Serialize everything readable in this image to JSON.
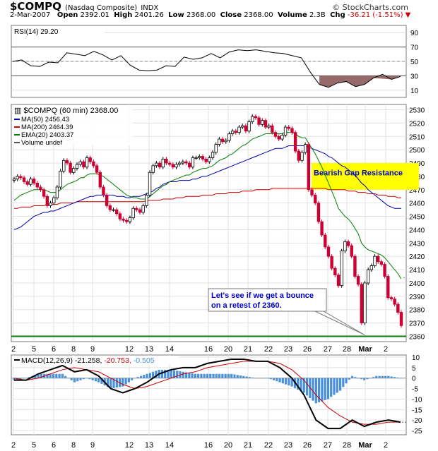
{
  "header": {
    "symbol": "$COMPQ",
    "name": "(Nasdaq Composite)",
    "exchange": "INDX",
    "date": "2-Mar-2007",
    "open_label": "Open",
    "open": "2392.01",
    "high_label": "High",
    "high": "2401.26",
    "low_label": "Low",
    "low": "2368.00",
    "close_label": "Close",
    "close": "2368.00",
    "volume_label": "Volume",
    "volume": "2.3B",
    "chg_label": "Chg",
    "chg": "-36.21 (-1.51%)",
    "watermark": "© StockCharts.com"
  },
  "colors": {
    "up": "#000000",
    "down": "#cc0033",
    "ma50": "#0000aa",
    "ma200": "#cc0000",
    "ema20": "#008000",
    "support": "#008000",
    "resistance_box": "#ffff00",
    "histogram": "#4a90d9"
  },
  "chart_data": [
    {
      "type": "line",
      "panel": "rsi",
      "label": "RSI(14) 29.20",
      "ylim": [
        0,
        100
      ],
      "ticks": [
        "90",
        "70",
        "50",
        "30",
        "10"
      ],
      "levels": [
        70,
        50,
        30
      ],
      "x": [
        0,
        3,
        6,
        9,
        12,
        15,
        18,
        21,
        24,
        27,
        30,
        33,
        36,
        39,
        42,
        45,
        48,
        51,
        54,
        57,
        60,
        63,
        66,
        69,
        72,
        75,
        78,
        81,
        84,
        87,
        90,
        93,
        96,
        99,
        102,
        105,
        108,
        111,
        114,
        117,
        120,
        123,
        126,
        129
      ],
      "values": [
        50,
        52,
        44,
        43,
        49,
        48,
        62,
        60,
        58,
        64,
        59,
        52,
        58,
        45,
        38,
        37,
        38,
        44,
        43,
        56,
        53,
        55,
        61,
        55,
        63,
        66,
        65,
        66,
        64,
        62,
        61,
        58,
        55,
        35,
        18,
        14,
        20,
        22,
        15,
        18,
        27,
        32,
        25,
        29
      ]
    },
    {
      "type": "candlestick",
      "panel": "price",
      "label": "$COMPQ (60 min) 2368.00",
      "ylim": [
        2356,
        2534
      ],
      "ticks": [
        "2530",
        "2520",
        "2510",
        "2500",
        "2490",
        "2480",
        "2470",
        "2460",
        "2450",
        "2440",
        "2430",
        "2420",
        "2410",
        "2400",
        "2390",
        "2380",
        "2370",
        "2360"
      ],
      "x_ticks": [
        "2",
        "5",
        "6",
        "8",
        "9",
        "12",
        "13",
        "14",
        "16",
        "20",
        "21",
        "22",
        "23",
        "26",
        "27",
        "28",
        "Mar",
        "2"
      ],
      "legend": [
        {
          "name": "MA(50) 2456.43",
          "color_key": "ma50"
        },
        {
          "name": "MA(200) 2464.39",
          "color_key": "ma200"
        },
        {
          "name": "EMA(20) 2403.37",
          "color_key": "ema20"
        },
        {
          "name": "Volume undef",
          "color_key": "up"
        }
      ],
      "close": [
        2478,
        2480,
        2479,
        2476,
        2474,
        2478,
        2475,
        2472,
        2470,
        2465,
        2458,
        2460,
        2464,
        2472,
        2484,
        2492,
        2490,
        2483,
        2486,
        2489,
        2491,
        2487,
        2494,
        2491,
        2488,
        2483,
        2472,
        2466,
        2458,
        2455,
        2455,
        2452,
        2448,
        2447,
        2446,
        2449,
        2456,
        2455,
        2453,
        2458,
        2466,
        2483,
        2488,
        2490,
        2487,
        2493,
        2490,
        2489,
        2487,
        2489,
        2490,
        2491,
        2490,
        2487,
        2494,
        2494,
        2495,
        2493,
        2491,
        2494,
        2498,
        2504,
        2508,
        2506,
        2507,
        2512,
        2514,
        2513,
        2517,
        2518,
        2514,
        2521,
        2525,
        2524,
        2519,
        2522,
        2517,
        2518,
        2513,
        2510,
        2508,
        2511,
        2517,
        2516,
        2513,
        2499,
        2492,
        2498,
        2504,
        2470,
        2466,
        2460,
        2446,
        2436,
        2427,
        2420,
        2411,
        2406,
        2398,
        2424,
        2431,
        2428,
        2420,
        2405,
        2399,
        2370,
        2400,
        2410,
        2413,
        2420,
        2416,
        2414,
        2405,
        2389,
        2388,
        2384,
        2378,
        2368
      ],
      "ma50": [
        2440,
        2441,
        2442,
        2444,
        2446,
        2448,
        2450,
        2451,
        2452,
        2453,
        2453,
        2454,
        2454,
        2455,
        2456,
        2457,
        2458,
        2459,
        2460,
        2461,
        2462,
        2463,
        2464,
        2465,
        2465,
        2466,
        2466,
        2466,
        2466,
        2466,
        2466,
        2465,
        2465,
        2465,
        2464,
        2464,
        2465,
        2465,
        2465,
        2466,
        2467,
        2468,
        2469,
        2471,
        2472,
        2474,
        2475,
        2476,
        2476,
        2476,
        2477,
        2477,
        2477,
        2477,
        2478,
        2478,
        2479,
        2480,
        2480,
        2481,
        2482,
        2483,
        2484,
        2485,
        2486,
        2487,
        2488,
        2489,
        2490,
        2491,
        2492,
        2493,
        2494,
        2495,
        2496,
        2497,
        2498,
        2499,
        2500,
        2501,
        2501,
        2501,
        2502,
        2503,
        2503,
        2503,
        2503,
        2503,
        2503,
        2502,
        2501,
        2500,
        2499,
        2498,
        2497,
        2495,
        2494,
        2492,
        2490,
        2488,
        2487,
        2485,
        2483,
        2481,
        2478,
        2475,
        2473,
        2470,
        2468,
        2466,
        2464,
        2462,
        2460,
        2458,
        2457,
        2456,
        2456,
        2456
      ],
      "ma200": [
        2456,
        2456,
        2457,
        2457,
        2457,
        2457,
        2458,
        2458,
        2458,
        2458,
        2459,
        2459,
        2459,
        2459,
        2460,
        2460,
        2460,
        2460,
        2460,
        2461,
        2461,
        2461,
        2461,
        2461,
        2461,
        2461,
        2461,
        2461,
        2461,
        2461,
        2461,
        2461,
        2461,
        2461,
        2461,
        2461,
        2461,
        2461,
        2461,
        2461,
        2462,
        2462,
        2462,
        2462,
        2462,
        2463,
        2463,
        2463,
        2463,
        2464,
        2464,
        2464,
        2465,
        2465,
        2465,
        2465,
        2465,
        2466,
        2466,
        2466,
        2466,
        2467,
        2467,
        2467,
        2467,
        2468,
        2468,
        2468,
        2468,
        2469,
        2469,
        2469,
        2469,
        2470,
        2470,
        2470,
        2470,
        2470,
        2471,
        2471,
        2471,
        2471,
        2471,
        2471,
        2471,
        2471,
        2471,
        2471,
        2471,
        2471,
        2471,
        2471,
        2471,
        2471,
        2471,
        2470,
        2470,
        2470,
        2470,
        2470,
        2470,
        2469,
        2469,
        2469,
        2468,
        2468,
        2468,
        2467,
        2467,
        2467,
        2466,
        2466,
        2466,
        2465,
        2465,
        2465,
        2464,
        2464
      ],
      "ema20": [
        2462,
        2464,
        2466,
        2467,
        2468,
        2469,
        2470,
        2470,
        2470,
        2470,
        2469,
        2468,
        2468,
        2468,
        2470,
        2472,
        2474,
        2475,
        2476,
        2477,
        2479,
        2479,
        2481,
        2482,
        2482,
        2482,
        2481,
        2480,
        2478,
        2476,
        2474,
        2472,
        2470,
        2468,
        2466,
        2465,
        2464,
        2464,
        2463,
        2463,
        2463,
        2465,
        2467,
        2469,
        2471,
        2473,
        2474,
        2476,
        2477,
        2478,
        2479,
        2480,
        2481,
        2481,
        2483,
        2484,
        2485,
        2486,
        2486,
        2487,
        2488,
        2490,
        2492,
        2493,
        2494,
        2496,
        2497,
        2499,
        2501,
        2503,
        2504,
        2506,
        2508,
        2509,
        2510,
        2511,
        2512,
        2512,
        2512,
        2512,
        2512,
        2512,
        2513,
        2513,
        2513,
        2512,
        2510,
        2509,
        2509,
        2505,
        2501,
        2497,
        2492,
        2487,
        2481,
        2475,
        2469,
        2463,
        2456,
        2453,
        2450,
        2448,
        2445,
        2441,
        2437,
        2430,
        2427,
        2425,
        2424,
        2423,
        2422,
        2421,
        2419,
        2416,
        2413,
        2410,
        2407,
        2403
      ],
      "support_level": 2360,
      "resistance_band": [
        2470,
        2490
      ],
      "annotations": [
        {
          "text": "Bearish Gap Resistance"
        },
        {
          "text": "Let's see if we get a bounce on a retest of 2360."
        }
      ]
    },
    {
      "type": "line",
      "panel": "macd",
      "label": "MACD(12,26,9) -21.258, -20.753, -0.505",
      "label_parts": [
        "MACD(12,26,9)",
        "-21.258",
        "-20.753",
        "-0.505"
      ],
      "ylim": [
        -27,
        11
      ],
      "ticks": [
        "10",
        "5",
        "0",
        "-5",
        "-10",
        "-15",
        "-20",
        "-25"
      ],
      "x": [
        0,
        4,
        8,
        12,
        16,
        20,
        24,
        28,
        32,
        36,
        40,
        44,
        48,
        52,
        56,
        60,
        64,
        68,
        72,
        76,
        80,
        84,
        88,
        92,
        96,
        100,
        104,
        108,
        112,
        116,
        120,
        124,
        128
      ],
      "macd": [
        -1,
        -1,
        2,
        4,
        6,
        3,
        4,
        1,
        -5,
        -7,
        -5,
        -2,
        2,
        4,
        5,
        5,
        7,
        8,
        9,
        9,
        8,
        8,
        5,
        0,
        -8,
        -20,
        -24,
        -24,
        -20,
        -23,
        -21,
        -20,
        -21
      ],
      "signal": [
        0,
        -1,
        0,
        2,
        4,
        5,
        4,
        3,
        0,
        -3,
        -5,
        -4,
        -2,
        0,
        2,
        3,
        5,
        6,
        7,
        8,
        8,
        8,
        7,
        4,
        -1,
        -8,
        -14,
        -18,
        -21,
        -22,
        -22,
        -21,
        -21
      ],
      "x_ticks": [
        "2",
        "5",
        "6",
        "8",
        "9",
        "12",
        "13",
        "14",
        "16",
        "20",
        "21",
        "22",
        "23",
        "26",
        "27",
        "28",
        "Mar",
        "2"
      ]
    }
  ]
}
